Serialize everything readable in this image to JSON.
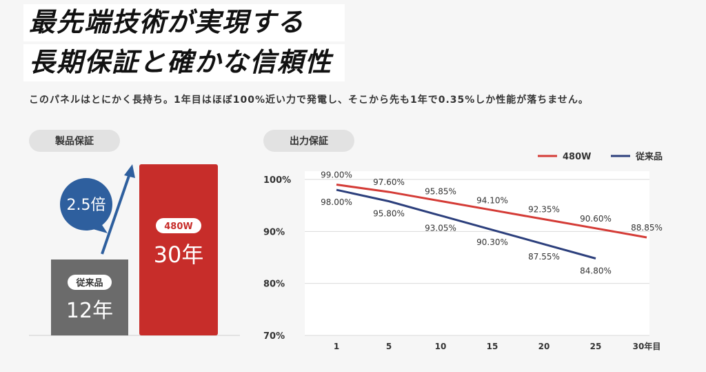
{
  "headline": {
    "line1": "最先端技術が実現する",
    "line2": "長期保証と確かな信頼性"
  },
  "lead_text": "このパネルはとにかく長持ち。1年目はほぼ100%近い力で発電し、そこから先も1年で0.35%しか性能が落ちません。",
  "product_warranty": {
    "title": "製品保証",
    "conventional_label": "従来品",
    "conventional_value": "12年",
    "new_label": "480W",
    "new_value": "30年",
    "multiplier": "2.5倍",
    "colors": {
      "conventional": "#6b6b6b",
      "new": "#c72d2a",
      "arrow": "#2e5f9e"
    }
  },
  "output_warranty": {
    "title": "出力保証"
  },
  "chart_data": {
    "type": "line",
    "x": [
      1,
      5,
      10,
      15,
      20,
      25,
      30
    ],
    "x_tick_labels": [
      "1",
      "5",
      "10",
      "15",
      "20",
      "25",
      "30年目"
    ],
    "ylim": [
      70,
      100
    ],
    "y_ticks": [
      70,
      80,
      90,
      100
    ],
    "y_tick_labels": [
      "70%",
      "80%",
      "90%",
      "100%"
    ],
    "legend_position": "top-right",
    "grid": true,
    "series": [
      {
        "name": "480W",
        "color": "#d43b36",
        "x": [
          1,
          5,
          10,
          15,
          20,
          25,
          30
        ],
        "values": [
          99.0,
          97.6,
          95.85,
          94.1,
          92.35,
          90.6,
          88.85
        ],
        "labels": [
          "99.00%",
          "97.60%",
          "95.85%",
          "94.10%",
          "92.35%",
          "90.60%",
          "88.85%"
        ]
      },
      {
        "name": "従来品",
        "color": "#2c3f7c",
        "x": [
          1,
          5,
          10,
          15,
          20,
          25
        ],
        "values": [
          98.0,
          95.8,
          93.05,
          90.3,
          87.55,
          84.8
        ],
        "labels": [
          "98.00%",
          "95.80%",
          "93.05%",
          "90.30%",
          "87.55%",
          "84.80%"
        ]
      }
    ]
  }
}
